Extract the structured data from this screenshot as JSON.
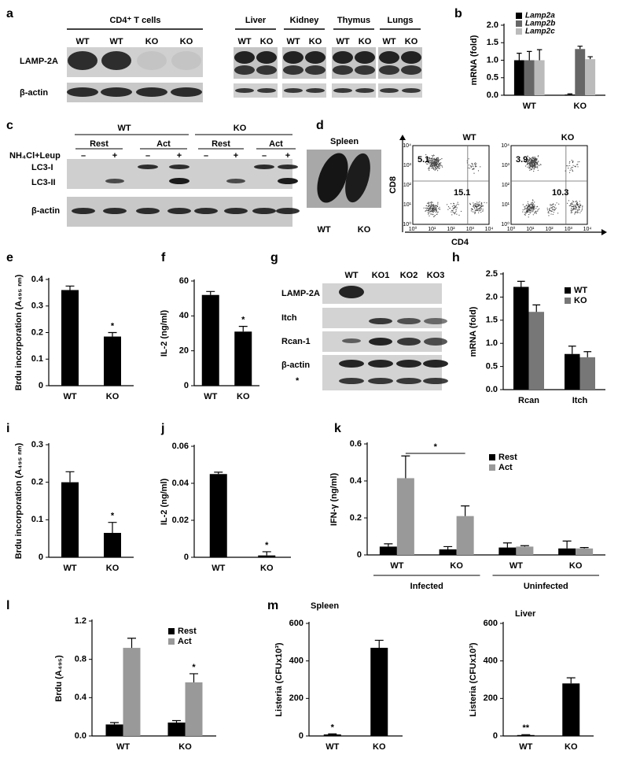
{
  "blots": {
    "a": {
      "label": "a",
      "cd4_header": "CD4⁺ T cells",
      "cd4_lanes": [
        "WT",
        "WT",
        "KO",
        "KO"
      ],
      "rows": [
        "LAMP-2A",
        "β-actin"
      ],
      "tissues": [
        "Liver",
        "Kidney",
        "Thymus",
        "Lungs"
      ],
      "tissue_lanes": [
        "WT",
        "KO"
      ]
    },
    "c": {
      "label": "c",
      "groups": [
        "WT",
        "KO"
      ],
      "conditions": [
        "Rest",
        "Act"
      ],
      "treatment": "NH₄Cl+Leup",
      "signs": [
        "–",
        "+"
      ],
      "rows": [
        "LC3-I",
        "LC3-II",
        "β-actin"
      ]
    },
    "d": {
      "label": "d",
      "spleen_title": "Spleen",
      "spleen_labels": [
        "WT",
        "KO"
      ],
      "flow": {
        "plots": [
          {
            "title": "WT",
            "quadrants": [
              5.1,
              15.1
            ]
          },
          {
            "title": "KO",
            "quadrants": [
              3.9,
              10.3
            ]
          }
        ],
        "xlabel": "CD4",
        "ylabel": "CD8",
        "ticks": [
          "10⁰",
          "10¹",
          "10²",
          "10³",
          "10⁴"
        ]
      }
    },
    "g": {
      "label": "g",
      "lanes": [
        "WT",
        "KO1",
        "KO2",
        "KO3"
      ],
      "rows": [
        "LAMP-2A",
        "Itch",
        "Rcan-1",
        "β-actin"
      ],
      "note": "*"
    }
  },
  "chart_data": [
    {
      "type": "bar",
      "label": "b",
      "ylabel": "mRNA (fold)",
      "categories": [
        "WT",
        "KO"
      ],
      "series": [
        {
          "name": "Lamp2a",
          "color": "#000000",
          "values": [
            1.0,
            0.02
          ],
          "errors": [
            0.2,
            0.02
          ]
        },
        {
          "name": "Lamp2b",
          "color": "#666666",
          "values": [
            1.0,
            1.32
          ],
          "errors": [
            0.25,
            0.08
          ]
        },
        {
          "name": "Lamp2c",
          "color": "#bbbbbb",
          "values": [
            1.0,
            1.03
          ],
          "errors": [
            0.3,
            0.07
          ]
        }
      ],
      "ylim": [
        0,
        2.0
      ],
      "yticks": [
        {
          "value": 0,
          "label": "0.0"
        },
        0.5,
        {
          "value": 1,
          "label": "1.0"
        },
        1.5,
        {
          "value": 2,
          "label": "2.0"
        }
      ]
    },
    {
      "type": "bar",
      "label": "e",
      "ylabel": "Brdu incorporation (A₄₉₅ ₙₘ)",
      "categories": [
        "WT",
        "KO"
      ],
      "series": [
        {
          "color": "#000000",
          "values": [
            0.36,
            0.185
          ],
          "errors": [
            0.015,
            0.015
          ]
        }
      ],
      "ylim": [
        0,
        0.4
      ],
      "yticks": [
        0,
        0.1,
        0.2,
        0.3,
        0.4
      ],
      "annotations": [
        "*"
      ]
    },
    {
      "type": "bar",
      "label": "f",
      "ylabel": "IL-2  (ng/ml)",
      "categories": [
        "WT",
        "KO"
      ],
      "series": [
        {
          "color": "#000000",
          "values": [
            52,
            31
          ],
          "errors": [
            2,
            3
          ]
        }
      ],
      "ylim": [
        0,
        60
      ],
      "yticks": [
        0,
        20,
        40,
        60
      ],
      "annotations": [
        "*"
      ]
    },
    {
      "type": "bar",
      "label": "h",
      "ylabel": "mRNA (fold)",
      "categories": [
        "Rcan",
        "Itch"
      ],
      "series": [
        {
          "name": "WT",
          "color": "#000000",
          "values": [
            2.22,
            0.77
          ],
          "errors": [
            0.12,
            0.17
          ]
        },
        {
          "name": "KO",
          "color": "#777777",
          "values": [
            1.68,
            0.7
          ],
          "errors": [
            0.15,
            0.12
          ]
        }
      ],
      "ylim": [
        0,
        2.5
      ],
      "yticks": [
        {
          "value": 0,
          "label": "0.0"
        },
        0.5,
        {
          "value": 1,
          "label": "1.0"
        },
        1.5,
        {
          "value": 2,
          "label": "2.0"
        },
        2.5
      ]
    },
    {
      "type": "bar",
      "label": "i",
      "ylabel": "Brdu incorporation  (A₄₉₅ ₙₘ)",
      "categories": [
        "WT",
        "KO"
      ],
      "series": [
        {
          "color": "#000000",
          "values": [
            0.2,
            0.065
          ],
          "errors": [
            0.028,
            0.028
          ]
        }
      ],
      "ylim": [
        0,
        0.3
      ],
      "yticks": [
        0,
        0.1,
        0.2,
        0.3
      ],
      "annotations": [
        "*"
      ]
    },
    {
      "type": "bar",
      "label": "j",
      "ylabel": "IL-2  (ng/ml)",
      "categories": [
        "WT",
        "KO"
      ],
      "series": [
        {
          "color": "#000000",
          "values": [
            0.045,
            0.001
          ],
          "errors": [
            0.001,
            0.002
          ]
        }
      ],
      "ylim": [
        0,
        0.06
      ],
      "yticks": [
        0,
        0.02,
        0.04,
        0.06
      ],
      "annotations": [
        "*"
      ]
    },
    {
      "type": "bar",
      "label": "k",
      "ylabel": "IFN-γ (ng/ml)",
      "categories": [
        "WT",
        "KO",
        "WT",
        "KO"
      ],
      "groups": [
        "Infected",
        "Uninfected"
      ],
      "series": [
        {
          "name": "Rest",
          "color": "#000000",
          "values": [
            0.045,
            0.03,
            0.04,
            0.035
          ],
          "errors": [
            0.015,
            0.015,
            0.025,
            0.04
          ]
        },
        {
          "name": "Act",
          "color": "#999999",
          "values": [
            0.415,
            0.21,
            0.045,
            0.035
          ],
          "errors": [
            0.12,
            0.055,
            0.005,
            0.005
          ]
        }
      ],
      "ylim": [
        0,
        0.6
      ],
      "yticks": [
        0,
        0.2,
        0.4,
        0.6
      ],
      "annotations": [
        "*"
      ]
    },
    {
      "type": "bar",
      "label": "l",
      "ylabel": "Brdu (A₄₉₅)",
      "categories": [
        "WT",
        "KO"
      ],
      "series": [
        {
          "name": "Rest",
          "color": "#000000",
          "values": [
            0.12,
            0.14
          ],
          "errors": [
            0.02,
            0.02
          ]
        },
        {
          "name": "Act",
          "color": "#999999",
          "values": [
            0.92,
            0.56
          ],
          "errors": [
            0.1,
            0.09
          ]
        }
      ],
      "ylim": [
        0,
        1.2
      ],
      "yticks": [
        {
          "value": 0,
          "label": "0.0"
        },
        0.4,
        0.8,
        1.2
      ],
      "annotations": [
        "*"
      ]
    },
    {
      "type": "bar",
      "label": "m",
      "title": "Spleen",
      "ylabel": "Listeria (CFUx10³)",
      "categories": [
        "WT",
        "KO"
      ],
      "series": [
        {
          "color": "#000000",
          "values": [
            8,
            470
          ],
          "errors": [
            3,
            40
          ]
        }
      ],
      "ylim": [
        0,
        600
      ],
      "yticks": [
        0,
        200,
        400,
        600
      ],
      "annotations": [
        "*"
      ]
    },
    {
      "type": "bar",
      "title": "Liver",
      "ylabel": "Listeria (CFUx10³)",
      "categories": [
        "WT",
        "KO"
      ],
      "series": [
        {
          "color": "#000000",
          "values": [
            5,
            280
          ],
          "errors": [
            2,
            30
          ]
        }
      ],
      "ylim": [
        0,
        600
      ],
      "yticks": [
        0,
        200,
        400,
        600
      ],
      "annotations": [
        "**"
      ]
    }
  ]
}
